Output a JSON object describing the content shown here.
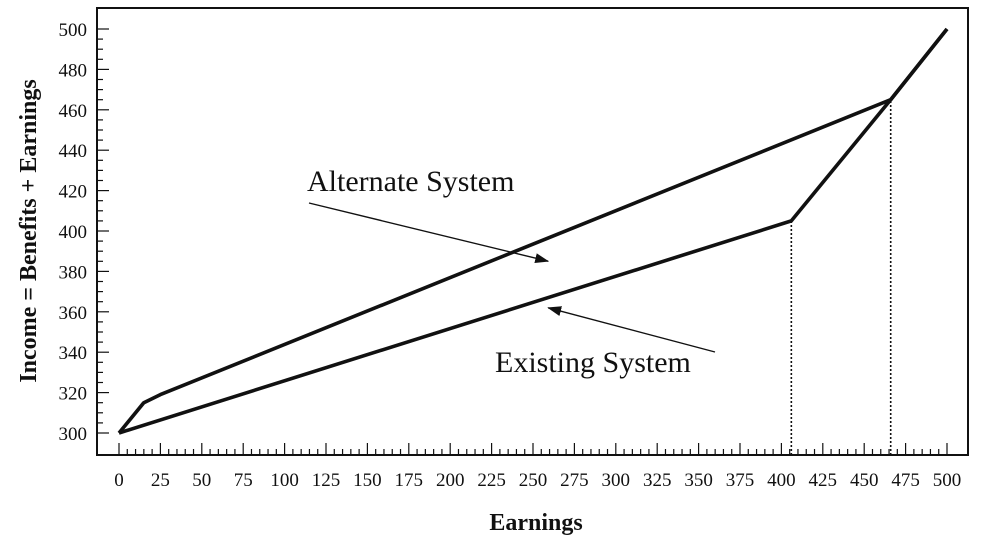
{
  "chart_data": {
    "type": "line",
    "title": "",
    "xlabel": "Earnings",
    "ylabel": "Income = Benefits + Earnings",
    "xlim": [
      0,
      500
    ],
    "ylim": [
      300,
      500
    ],
    "x_ticks": [
      0,
      25,
      50,
      75,
      100,
      125,
      150,
      175,
      200,
      225,
      250,
      275,
      300,
      325,
      350,
      375,
      400,
      425,
      450,
      475,
      500
    ],
    "y_ticks": [
      300,
      320,
      340,
      360,
      380,
      400,
      420,
      440,
      460,
      480,
      500
    ],
    "grid": false,
    "legend": "none",
    "series": [
      {
        "name": "Alternate System",
        "points": [
          [
            0,
            300
          ],
          [
            15,
            315
          ],
          [
            25,
            319
          ],
          [
            466,
            465
          ],
          [
            500,
            500
          ]
        ]
      },
      {
        "name": "Existing System",
        "points": [
          [
            0,
            300
          ],
          [
            406,
            405
          ],
          [
            466,
            465
          ],
          [
            500,
            500
          ]
        ]
      }
    ],
    "reference_lines_x": [
      406,
      466
    ],
    "annotations": [
      {
        "text": "Alternate System",
        "arrow_to": [
          235,
          388
        ]
      },
      {
        "text": "Existing System",
        "arrow_to": [
          235,
          360
        ]
      }
    ]
  }
}
